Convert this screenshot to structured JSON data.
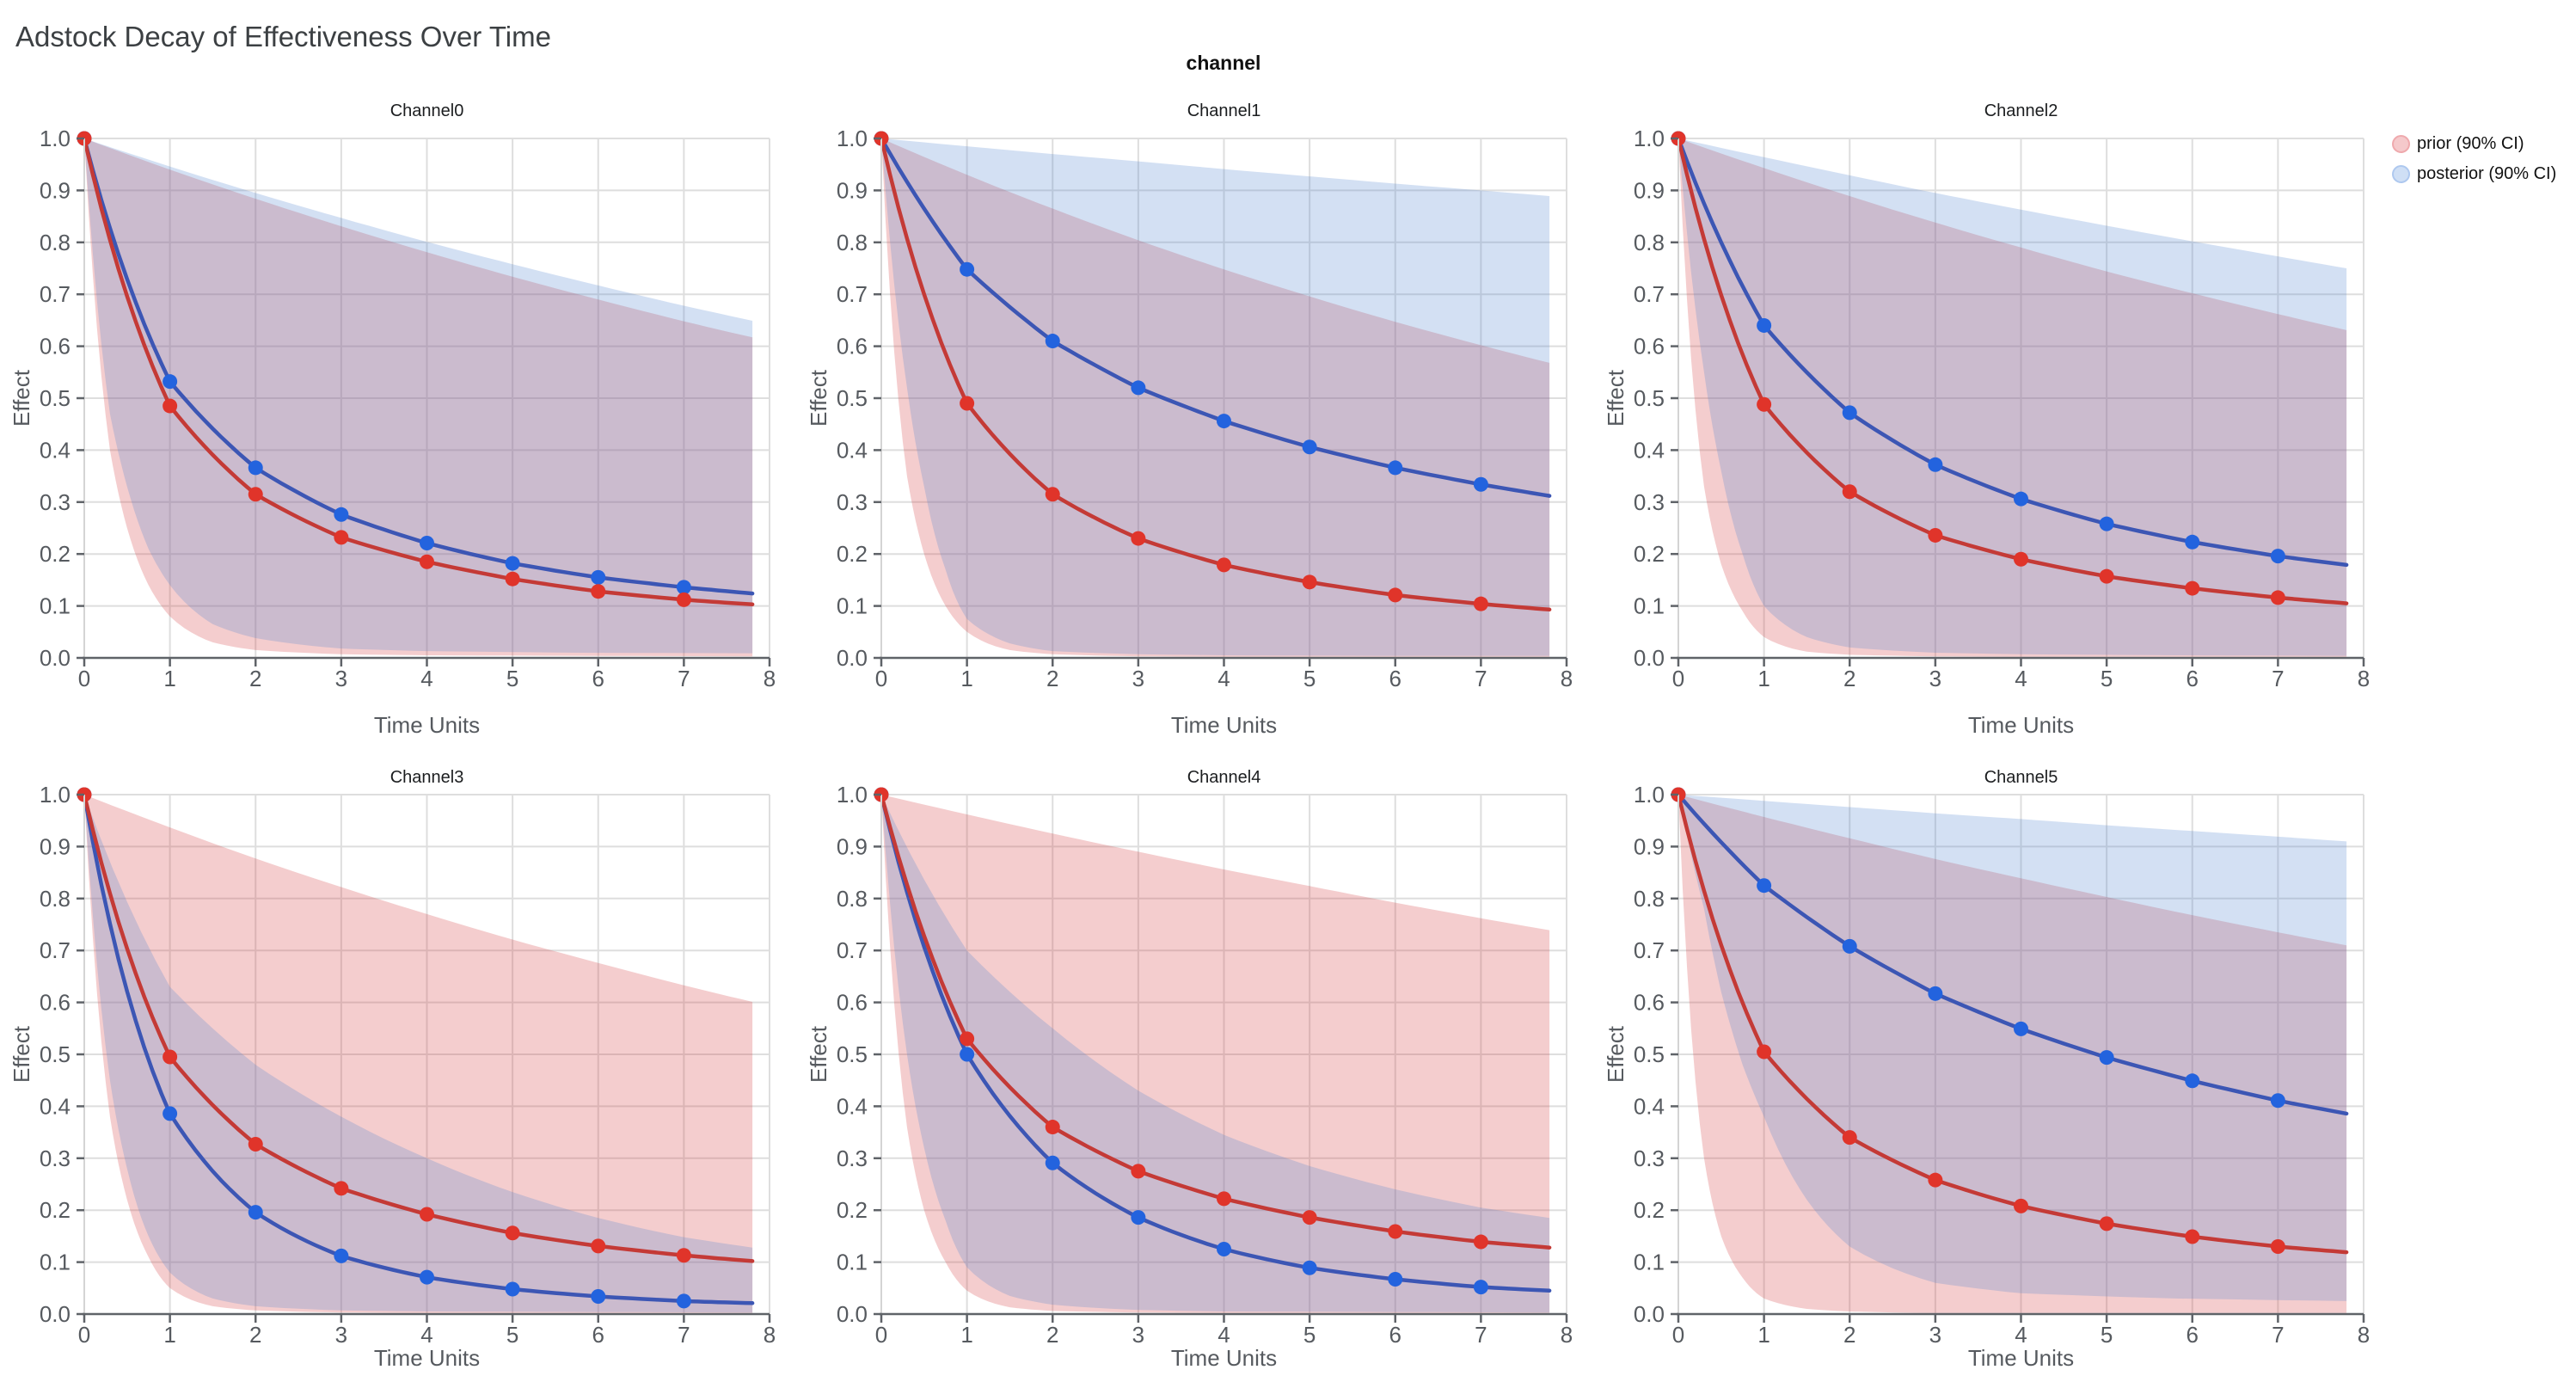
{
  "chart_data": {
    "type": "line",
    "title": "Adstock Decay of Effectiveness Over Time",
    "facet_label": "channel",
    "xlabel": "Time Units",
    "ylabel": "Effect",
    "xlim": [
      0,
      8
    ],
    "ylim": [
      0,
      1
    ],
    "xticks": [
      0,
      1,
      2,
      3,
      4,
      5,
      6,
      7,
      8
    ],
    "yticks": [
      0.0,
      0.1,
      0.2,
      0.3,
      0.4,
      0.5,
      0.6,
      0.7,
      0.8,
      0.9,
      1.0
    ],
    "grid": "on",
    "legend_position": "top-right-outside",
    "legend": [
      {
        "label": "prior (90% CI)",
        "swatch_fill": "#f5c9cb",
        "swatch_stroke": "#efa9ad"
      },
      {
        "label": "posterior (90% CI)",
        "swatch_fill": "#cfdff5",
        "swatch_stroke": "#aec8ef"
      }
    ],
    "style": {
      "prior_line": "#c43a36",
      "prior_marker": "#e0342a",
      "posterior_line": "#3c56b4",
      "posterior_marker": "#2363de",
      "prior_fill": "rgba(214,60,64,0.26)",
      "posterior_fill": "rgba(85,135,210,0.26)",
      "grid_color": "#dedede",
      "axis_color": "#5f6368",
      "tick_label_color": "#565a5f",
      "subplot_title_color": "#1b1d1f"
    },
    "x_mean": [
      0,
      1,
      2,
      3,
      4,
      5,
      6,
      7,
      7.8
    ],
    "marker_x": [
      0,
      1,
      2,
      3,
      4,
      5,
      6,
      7
    ],
    "x_upper": [
      0,
      1,
      2,
      3,
      4,
      5,
      6,
      7,
      7.8
    ],
    "x_lower": [
      0,
      0.3,
      0.5,
      0.75,
      1,
      1.5,
      2,
      3,
      4,
      5.8,
      7.8
    ],
    "channels": [
      {
        "name": "Channel0",
        "prior": {
          "mean": [
            1,
            0.485,
            0.315,
            0.232,
            0.185,
            0.152,
            0.128,
            0.112,
            0.103
          ],
          "upper": [
            1,
            0.94,
            0.884,
            0.831,
            0.781,
            0.734,
            0.69,
            0.648,
            0.617
          ],
          "lower": [
            1,
            0.4,
            0.25,
            0.14,
            0.08,
            0.03,
            0.015,
            0.007,
            0.005,
            0.004,
            0.003
          ]
        },
        "posterior": {
          "mean": [
            1,
            0.532,
            0.366,
            0.276,
            0.221,
            0.182,
            0.155,
            0.136,
            0.124
          ],
          "upper": [
            1,
            0.946,
            0.895,
            0.847,
            0.801,
            0.758,
            0.717,
            0.678,
            0.649
          ],
          "lower": [
            1,
            0.47,
            0.33,
            0.21,
            0.14,
            0.065,
            0.038,
            0.018,
            0.013,
            0.01,
            0.009
          ]
        }
      },
      {
        "name": "Channel1",
        "prior": {
          "mean": [
            1,
            0.49,
            0.315,
            0.23,
            0.179,
            0.146,
            0.121,
            0.104,
            0.093
          ],
          "upper": [
            1,
            0.93,
            0.865,
            0.804,
            0.748,
            0.696,
            0.647,
            0.602,
            0.568
          ],
          "lower": [
            1,
            0.35,
            0.2,
            0.1,
            0.05,
            0.015,
            0.007,
            0.003,
            0.002,
            0.002,
            0.002
          ]
        },
        "posterior": {
          "mean": [
            1,
            0.748,
            0.61,
            0.52,
            0.456,
            0.406,
            0.366,
            0.334,
            0.312
          ],
          "upper": [
            1,
            0.985,
            0.97,
            0.956,
            0.941,
            0.927,
            0.913,
            0.9,
            0.889
          ],
          "lower": [
            1,
            0.52,
            0.33,
            0.17,
            0.075,
            0.028,
            0.013,
            0.007,
            0.005,
            0.004,
            0.004
          ]
        }
      },
      {
        "name": "Channel2",
        "prior": {
          "mean": [
            1,
            0.488,
            0.32,
            0.236,
            0.19,
            0.157,
            0.134,
            0.116,
            0.105
          ],
          "upper": [
            1,
            0.943,
            0.889,
            0.838,
            0.79,
            0.744,
            0.702,
            0.662,
            0.631
          ],
          "lower": [
            1,
            0.33,
            0.18,
            0.09,
            0.04,
            0.012,
            0.006,
            0.003,
            0.002,
            0.002,
            0.002
          ]
        },
        "posterior": {
          "mean": [
            1,
            0.64,
            0.472,
            0.372,
            0.306,
            0.258,
            0.223,
            0.196,
            0.179
          ],
          "upper": [
            1,
            0.964,
            0.929,
            0.895,
            0.863,
            0.832,
            0.802,
            0.773,
            0.75
          ],
          "lower": [
            1,
            0.55,
            0.36,
            0.2,
            0.1,
            0.04,
            0.02,
            0.01,
            0.007,
            0.005,
            0.004
          ]
        }
      },
      {
        "name": "Channel3",
        "prior": {
          "mean": [
            1,
            0.495,
            0.327,
            0.242,
            0.192,
            0.156,
            0.131,
            0.113,
            0.102
          ],
          "upper": [
            1,
            0.937,
            0.877,
            0.822,
            0.77,
            0.721,
            0.676,
            0.633,
            0.601
          ],
          "lower": [
            1,
            0.38,
            0.22,
            0.11,
            0.05,
            0.015,
            0.007,
            0.003,
            0.002,
            0.002,
            0.002
          ]
        },
        "posterior": {
          "mean": [
            1,
            0.386,
            0.196,
            0.112,
            0.071,
            0.048,
            0.034,
            0.025,
            0.021
          ],
          "upper": [
            1,
            0.63,
            0.48,
            0.38,
            0.3,
            0.235,
            0.185,
            0.148,
            0.128
          ],
          "lower": [
            1,
            0.45,
            0.28,
            0.15,
            0.08,
            0.03,
            0.015,
            0.007,
            0.005,
            0.004,
            0.003
          ]
        }
      },
      {
        "name": "Channel4",
        "prior": {
          "mean": [
            1,
            0.53,
            0.36,
            0.275,
            0.222,
            0.186,
            0.159,
            0.139,
            0.128
          ],
          "upper": [
            1,
            0.962,
            0.925,
            0.89,
            0.856,
            0.824,
            0.792,
            0.762,
            0.739
          ],
          "lower": [
            1,
            0.36,
            0.2,
            0.1,
            0.045,
            0.013,
            0.006,
            0.003,
            0.002,
            0.002,
            0.002
          ]
        },
        "posterior": {
          "mean": [
            1,
            0.5,
            0.291,
            0.186,
            0.125,
            0.089,
            0.067,
            0.052,
            0.045
          ],
          "upper": [
            1,
            0.7,
            0.55,
            0.43,
            0.345,
            0.285,
            0.24,
            0.205,
            0.185
          ],
          "lower": [
            1,
            0.5,
            0.32,
            0.18,
            0.09,
            0.035,
            0.018,
            0.008,
            0.005,
            0.004,
            0.003
          ]
        }
      },
      {
        "name": "Channel5",
        "prior": {
          "mean": [
            1,
            0.505,
            0.34,
            0.258,
            0.208,
            0.174,
            0.149,
            0.13,
            0.119
          ],
          "upper": [
            1,
            0.957,
            0.916,
            0.876,
            0.839,
            0.803,
            0.768,
            0.735,
            0.71
          ],
          "lower": [
            1,
            0.3,
            0.15,
            0.07,
            0.03,
            0.01,
            0.005,
            0.002,
            0.002,
            0.002,
            0.002
          ]
        },
        "posterior": {
          "mean": [
            1,
            0.825,
            0.708,
            0.617,
            0.549,
            0.494,
            0.449,
            0.411,
            0.386
          ],
          "upper": [
            1,
            0.988,
            0.976,
            0.964,
            0.953,
            0.941,
            0.93,
            0.919,
            0.91
          ],
          "lower": [
            1,
            0.78,
            0.62,
            0.48,
            0.38,
            0.22,
            0.13,
            0.06,
            0.04,
            0.03,
            0.025
          ]
        }
      }
    ]
  }
}
